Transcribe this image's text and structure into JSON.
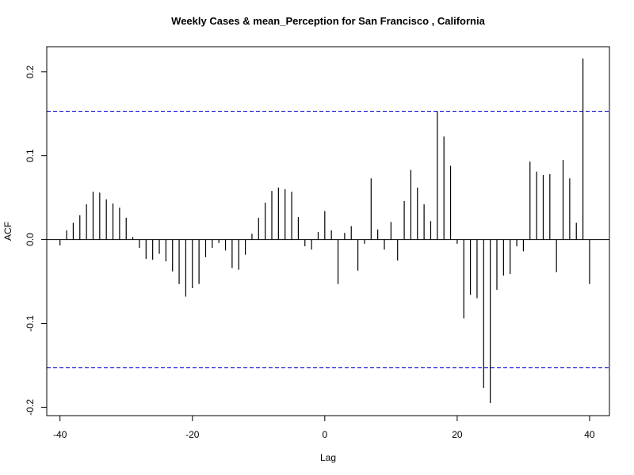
{
  "chart_data": {
    "type": "bar",
    "title": "Weekly Cases & mean_Perception for San Francisco , California",
    "xlabel": "Lag",
    "ylabel": "ACF",
    "xlim": [
      -42,
      43
    ],
    "ylim": [
      -0.21,
      0.23
    ],
    "x_ticks": [
      -40,
      -20,
      0,
      20,
      40
    ],
    "x_tick_labels": [
      "-40",
      "-20",
      "0",
      "20",
      "40"
    ],
    "y_ticks": [
      -0.2,
      -0.1,
      0.0,
      0.1,
      0.2
    ],
    "y_tick_labels": [
      "-0.2",
      "-0.1",
      "0.0",
      "0.1",
      "0.2"
    ],
    "confidence_bound": 0.153,
    "bound_color": "#0000cc",
    "bar_color": "#000000",
    "series": [
      {
        "name": "ACF",
        "x": [
          -40,
          -39,
          -38,
          -37,
          -36,
          -35,
          -34,
          -33,
          -32,
          -31,
          -30,
          -29,
          -28,
          -27,
          -26,
          -25,
          -24,
          -23,
          -22,
          -21,
          -20,
          -19,
          -18,
          -17,
          -16,
          -15,
          -14,
          -13,
          -12,
          -11,
          -10,
          -9,
          -8,
          -7,
          -6,
          -5,
          -4,
          -3,
          -2,
          -1,
          0,
          1,
          2,
          3,
          4,
          5,
          6,
          7,
          8,
          9,
          10,
          11,
          12,
          13,
          14,
          15,
          16,
          17,
          18,
          19,
          20,
          21,
          22,
          23,
          24,
          25,
          26,
          27,
          28,
          29,
          30,
          31,
          32,
          33,
          34,
          35,
          36,
          37,
          38,
          39,
          40
        ],
        "values": [
          -0.007,
          0.011,
          0.02,
          0.029,
          0.042,
          0.057,
          0.056,
          0.048,
          0.043,
          0.038,
          0.026,
          0.003,
          -0.01,
          -0.023,
          -0.024,
          -0.017,
          -0.026,
          -0.038,
          -0.053,
          -0.068,
          -0.058,
          -0.053,
          -0.021,
          -0.01,
          -0.004,
          -0.013,
          -0.034,
          -0.036,
          -0.018,
          0.007,
          0.026,
          0.044,
          0.058,
          0.062,
          0.06,
          0.057,
          0.027,
          -0.008,
          -0.012,
          0.009,
          0.034,
          0.011,
          -0.053,
          0.008,
          0.016,
          -0.037,
          -0.005,
          0.073,
          0.012,
          -0.012,
          0.021,
          -0.025,
          0.046,
          0.083,
          0.062,
          0.042,
          0.022,
          0.153,
          0.123,
          0.088,
          -0.005,
          -0.094,
          -0.066,
          -0.07,
          -0.177,
          -0.195,
          -0.06,
          -0.043,
          -0.041,
          -0.008,
          -0.014,
          0.093,
          0.081,
          0.077,
          0.078,
          -0.039,
          0.095,
          0.073,
          0.02,
          0.216,
          -0.053
        ]
      }
    ]
  }
}
